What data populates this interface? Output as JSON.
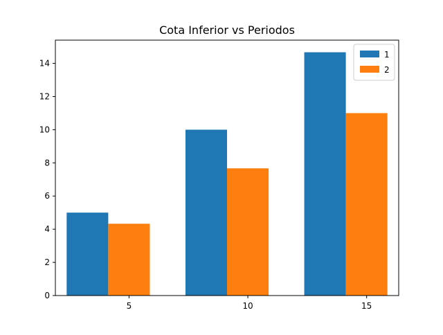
{
  "chart_data": {
    "type": "bar",
    "title": "Cota Inferior vs Periodos",
    "xlabel": "",
    "ylabel": "",
    "categories": [
      "5",
      "10",
      "15"
    ],
    "series": [
      {
        "name": "1",
        "values": [
          5.0,
          10.0,
          14.67
        ],
        "color": "#1f77b4"
      },
      {
        "name": "2",
        "values": [
          4.33,
          7.67,
          11.0
        ],
        "color": "#ff7f0e"
      }
    ],
    "ylim": [
      0,
      15.4
    ],
    "yticks": [
      0,
      2,
      4,
      6,
      8,
      10,
      12,
      14
    ],
    "ytick_labels": [
      "0",
      "2",
      "4",
      "6",
      "8",
      "10",
      "12",
      "14"
    ],
    "grid": false,
    "legend_position": "top-right"
  }
}
